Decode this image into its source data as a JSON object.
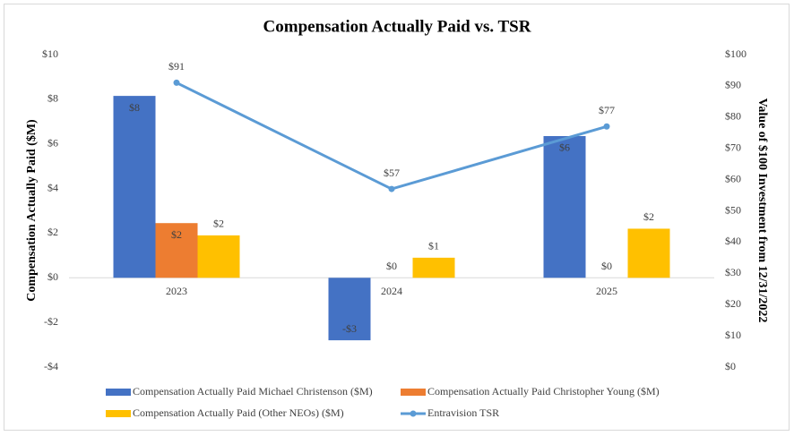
{
  "chart_data": {
    "type": "bar",
    "title": "Compensation Actually Paid vs. TSR",
    "ylabel": "Compensation Actually Paid ($M)",
    "y2label": "Value of $100 Investment from 12/31/2022",
    "categories": [
      "2023",
      "2024",
      "2025"
    ],
    "series": [
      {
        "name": "Compensation Actually Paid Michael Christenson ($M)",
        "color": "#4472c4",
        "type": "bar",
        "label_position": "inside_end",
        "values": [
          8.15,
          -2.8,
          6.35
        ],
        "value_labels": [
          "$8",
          "-$3",
          "$6"
        ]
      },
      {
        "name": "Compensation Actually Paid Christopher Young ($M)",
        "color": "#ed7d31",
        "type": "bar",
        "label_position": "inside_end",
        "values": [
          2.45,
          0,
          0
        ],
        "value_labels": [
          "$2",
          "$0",
          "$0"
        ]
      },
      {
        "name": "Compensation Actually Paid (Other NEOs) ($M)",
        "color": "#ffc000",
        "type": "bar",
        "label_position": "outside_end",
        "values": [
          1.9,
          0.9,
          2.2
        ],
        "value_labels": [
          "$2",
          "$1",
          "$2"
        ]
      },
      {
        "name": "Entravision TSR",
        "color": "#5b9bd5",
        "type": "line",
        "axis": "y2",
        "values": [
          91,
          57,
          77
        ],
        "value_labels": [
          "$91",
          "$57",
          "$77"
        ]
      }
    ],
    "ylim": [
      -4,
      10
    ],
    "yticks": [
      {
        "value": -4,
        "label": "-$4"
      },
      {
        "value": -2,
        "label": "-$2"
      },
      {
        "value": 0,
        "label": "$0"
      },
      {
        "value": 2,
        "label": "$2"
      },
      {
        "value": 4,
        "label": "$4"
      },
      {
        "value": 6,
        "label": "$6"
      },
      {
        "value": 8,
        "label": "$8"
      },
      {
        "value": 10,
        "label": "$10"
      }
    ],
    "y2lim": [
      0,
      100
    ],
    "y2ticks": [
      {
        "value": 0,
        "label": "$0"
      },
      {
        "value": 10,
        "label": "$10"
      },
      {
        "value": 20,
        "label": "$20"
      },
      {
        "value": 30,
        "label": "$30"
      },
      {
        "value": 40,
        "label": "$40"
      },
      {
        "value": 50,
        "label": "$50"
      },
      {
        "value": 60,
        "label": "$60"
      },
      {
        "value": 70,
        "label": "$70"
      },
      {
        "value": 80,
        "label": "$80"
      },
      {
        "value": 90,
        "label": "$90"
      },
      {
        "value": 100,
        "label": "$100"
      }
    ],
    "grid": false,
    "legend": "bottom"
  }
}
